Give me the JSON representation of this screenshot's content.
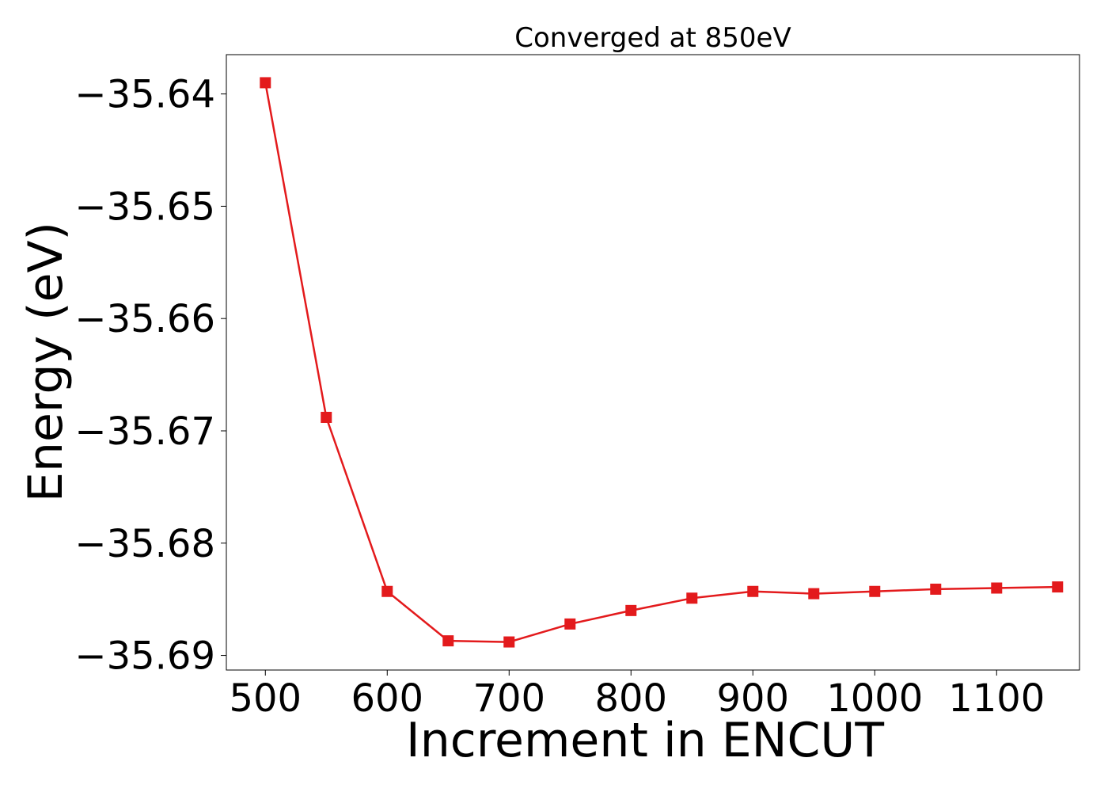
{
  "chart_data": {
    "type": "line",
    "title": "Converged at 850eV",
    "xlabel": "Increment in ENCUT",
    "ylabel": "Energy (eV)",
    "xlim": [
      468,
      1168
    ],
    "ylim": [
      -35.6913,
      -35.6365
    ],
    "xticks": [
      500,
      600,
      700,
      800,
      900,
      1000,
      1100
    ],
    "xtick_labels": [
      "500",
      "600",
      "700",
      "800",
      "900",
      "1000",
      "1100"
    ],
    "yticks": [
      -35.64,
      -35.65,
      -35.66,
      -35.67,
      -35.68,
      -35.69
    ],
    "ytick_labels": [
      "−35.64",
      "−35.65",
      "−35.66",
      "−35.67",
      "−35.68",
      "−35.69"
    ],
    "grid": false,
    "legend": false,
    "series": [
      {
        "color": "#e31a1c",
        "marker": "square",
        "x": [
          500,
          550,
          600,
          650,
          700,
          750,
          800,
          850,
          900,
          950,
          1000,
          1050,
          1100,
          1150
        ],
        "y": [
          -35.639,
          -35.6688,
          -35.6843,
          -35.6887,
          -35.6888,
          -35.6872,
          -35.686,
          -35.6849,
          -35.6843,
          -35.6845,
          -35.6843,
          -35.6841,
          -35.684,
          -35.6839
        ]
      }
    ]
  }
}
